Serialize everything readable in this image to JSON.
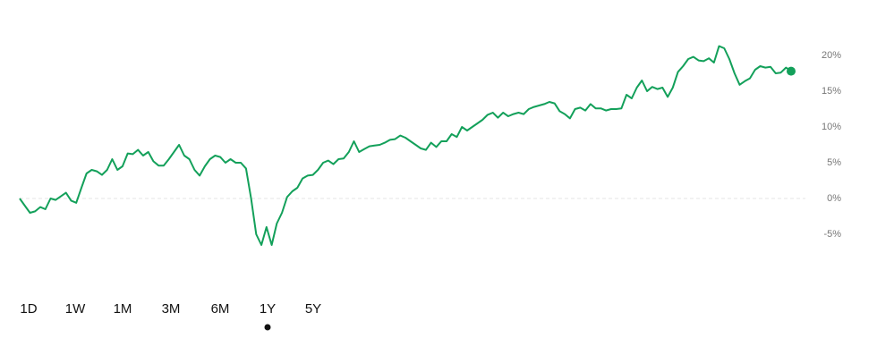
{
  "chart_data": {
    "type": "line",
    "series": [
      {
        "color": "#13a05a",
        "values": [
          0,
          -1,
          -2,
          -1.8,
          -1.2,
          -1.5,
          0,
          -0.2,
          0.3,
          0.8,
          -0.3,
          -0.6,
          1.5,
          3.5,
          4,
          3.8,
          3.3,
          4,
          5.5,
          4,
          4.5,
          6.3,
          6.2,
          6.8,
          6,
          6.5,
          5.2,
          4.6,
          4.6,
          5.5,
          6.5,
          7.5,
          6,
          5.5,
          4,
          3.2,
          4.5,
          5.5,
          6,
          5.8,
          5,
          5.5,
          5,
          5,
          4.2,
          0,
          -5,
          -6.5,
          -4,
          -6.5,
          -3.5,
          -2,
          0.2,
          1,
          1.5,
          2.8,
          3.2,
          3.3,
          4,
          5,
          5.3,
          4.8,
          5.5,
          5.6,
          6.5,
          8,
          6.5,
          6.9,
          7.3,
          7.4,
          7.5,
          7.8,
          8.2,
          8.3,
          8.8,
          8.5,
          8,
          7.5,
          7,
          6.8,
          7.8,
          7.2,
          8,
          8,
          9,
          8.6,
          10,
          9.5,
          10,
          10.5,
          11,
          11.7,
          12,
          11.3,
          12,
          11.5,
          11.8,
          12,
          11.8,
          12.5,
          12.8,
          13,
          13.2,
          13.5,
          13.3,
          12.2,
          11.8,
          11.2,
          12.5,
          12.7,
          12.3,
          13.2,
          12.6,
          12.6,
          12.3,
          12.5,
          12.5,
          12.6,
          14.5,
          14,
          15.5,
          16.5,
          15,
          15.6,
          15.3,
          15.5,
          14.2,
          15.5,
          17.7,
          18.5,
          19.5,
          19.8,
          19.3,
          19.2,
          19.6,
          19,
          21.3,
          21,
          19.5,
          17.5,
          15.9,
          16.4,
          16.8,
          18,
          18.5,
          18.3,
          18.4,
          17.5,
          17.6,
          18.3,
          17.8
        ]
      }
    ],
    "ylim": [
      -8.5,
      22.75
    ],
    "yticks": [
      {
        "value": 20,
        "label": "20%"
      },
      {
        "value": 15,
        "label": "15%"
      },
      {
        "value": 10,
        "label": "10%"
      },
      {
        "value": 5,
        "label": "5%"
      },
      {
        "value": 0,
        "label": "0%"
      },
      {
        "value": -5,
        "label": "-5%"
      }
    ],
    "end_marker": true
  },
  "range_selector": {
    "options": [
      "1D",
      "1W",
      "1M",
      "3M",
      "6M",
      "1Y",
      "5Y"
    ],
    "selected": "1Y"
  }
}
